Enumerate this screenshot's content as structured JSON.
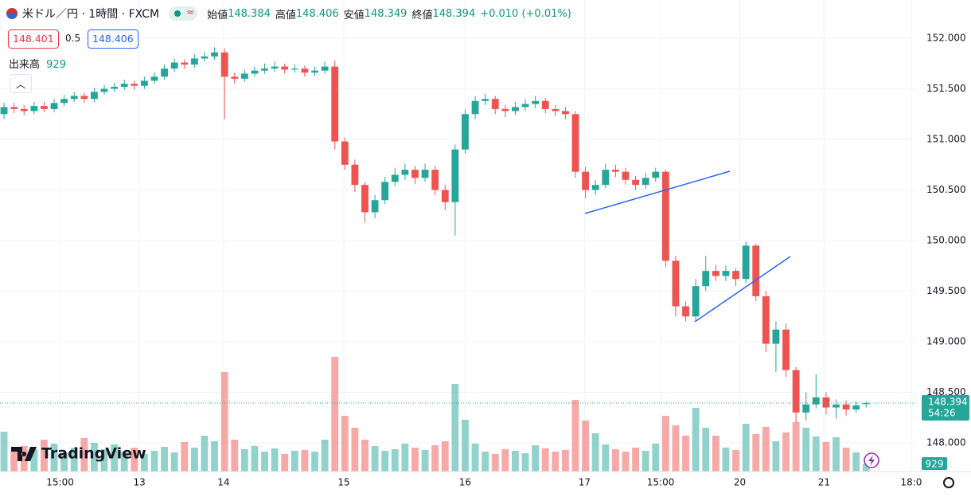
{
  "chart_data": {
    "type": "candlestick",
    "title": "米ドル／円 · 1時間 · FXCM",
    "info_labels": [
      "始値",
      "高値",
      "安値",
      "終値"
    ],
    "change": "+0.010 (+0.01%)",
    "bid": 148.401,
    "spread": 0.5,
    "ask": 148.406,
    "volume_label": "出来高",
    "countdown": "54:26",
    "brand": "TradingView",
    "up_color": "#26a69a",
    "down_color": "#ef5350",
    "open": [
      151.25,
      151.32,
      151.3,
      151.28,
      151.33,
      151.3,
      151.36,
      151.4,
      151.43,
      151.4,
      151.47,
      151.5,
      151.52,
      151.55,
      151.53,
      151.58,
      151.62,
      151.7,
      151.76,
      151.74,
      151.8,
      151.82,
      151.86,
      151.62,
      151.6,
      151.65,
      151.68,
      151.7,
      151.72,
      151.69,
      151.7,
      151.66,
      151.68,
      151.72,
      150.98,
      150.75,
      150.55,
      150.28,
      150.4,
      150.58,
      150.65,
      150.7,
      150.62,
      150.7,
      150.5,
      150.38,
      150.9,
      151.25,
      151.38,
      151.4,
      151.3,
      151.28,
      151.32,
      151.35,
      151.38,
      151.3,
      151.28,
      151.25,
      150.68,
      150.5,
      150.55,
      150.7,
      150.68,
      150.6,
      150.55,
      150.62,
      150.68,
      149.8,
      149.35,
      149.25,
      149.55,
      149.7,
      149.65,
      149.7,
      149.62,
      149.95,
      149.45,
      148.98,
      149.12,
      148.72,
      148.3,
      148.38,
      148.45,
      148.35,
      148.38,
      148.33,
      148.384
    ],
    "high": [
      151.36,
      151.36,
      151.34,
      151.37,
      151.37,
      151.4,
      151.44,
      151.47,
      151.46,
      151.51,
      151.54,
      151.56,
      151.59,
      151.58,
      151.62,
      151.66,
      151.74,
      151.8,
      151.79,
      151.84,
      151.87,
      151.91,
      151.9,
      151.66,
      151.69,
      151.72,
      151.75,
      151.77,
      151.75,
      151.74,
      151.73,
      151.72,
      151.77,
      151.78,
      151.02,
      150.8,
      150.58,
      150.45,
      150.63,
      150.72,
      150.76,
      150.74,
      150.76,
      150.74,
      150.55,
      150.95,
      151.3,
      151.43,
      151.45,
      151.43,
      151.34,
      151.37,
      151.4,
      151.43,
      151.41,
      151.34,
      151.32,
      151.28,
      150.73,
      150.6,
      150.76,
      150.75,
      150.72,
      150.64,
      150.67,
      150.72,
      150.7,
      149.85,
      149.4,
      149.62,
      149.85,
      149.76,
      149.75,
      149.73,
      149.99,
      149.97,
      149.5,
      149.2,
      149.18,
      148.75,
      148.5,
      148.68,
      148.5,
      148.43,
      148.42,
      148.41,
      148.406
    ],
    "low": [
      151.2,
      151.26,
      151.24,
      151.25,
      151.27,
      151.27,
      151.33,
      151.37,
      151.36,
      151.37,
      151.44,
      151.47,
      151.49,
      151.49,
      151.5,
      151.55,
      151.59,
      151.67,
      151.7,
      151.71,
      151.77,
      151.79,
      151.2,
      151.55,
      151.57,
      151.62,
      151.65,
      151.67,
      151.65,
      151.66,
      151.62,
      151.63,
      151.65,
      150.9,
      150.7,
      150.48,
      150.18,
      150.22,
      150.36,
      150.54,
      150.6,
      150.56,
      150.58,
      150.45,
      150.3,
      150.05,
      150.86,
      151.2,
      151.34,
      151.25,
      151.22,
      151.24,
      151.28,
      151.31,
      151.26,
      151.23,
      151.2,
      150.62,
      150.42,
      150.45,
      150.52,
      150.63,
      150.55,
      150.5,
      150.51,
      150.58,
      149.74,
      149.25,
      149.2,
      149.2,
      149.5,
      149.6,
      149.6,
      149.55,
      149.58,
      149.4,
      148.9,
      148.7,
      148.65,
      148.2,
      148.22,
      148.34,
      148.28,
      148.24,
      148.27,
      148.3,
      148.349
    ],
    "close": [
      151.32,
      151.3,
      151.28,
      151.33,
      151.3,
      151.36,
      151.4,
      151.43,
      151.4,
      151.47,
      151.5,
      151.52,
      151.55,
      151.53,
      151.58,
      151.62,
      151.7,
      151.76,
      151.74,
      151.8,
      151.82,
      151.86,
      151.62,
      151.6,
      151.65,
      151.68,
      151.7,
      151.72,
      151.69,
      151.7,
      151.66,
      151.68,
      151.72,
      150.98,
      150.75,
      150.55,
      150.28,
      150.4,
      150.58,
      150.65,
      150.7,
      150.62,
      150.7,
      150.5,
      150.38,
      150.9,
      151.25,
      151.38,
      151.4,
      151.3,
      151.28,
      151.32,
      151.35,
      151.38,
      151.3,
      151.28,
      151.25,
      150.68,
      150.5,
      150.55,
      150.7,
      150.68,
      150.6,
      150.55,
      150.62,
      150.68,
      149.8,
      149.35,
      149.25,
      149.55,
      149.7,
      149.65,
      149.7,
      149.62,
      149.95,
      149.45,
      148.98,
      149.12,
      148.72,
      148.3,
      148.38,
      148.45,
      148.35,
      148.38,
      148.33,
      148.37,
      148.394
    ],
    "volume": [
      5000,
      2600,
      3200,
      2800,
      4000,
      3500,
      2400,
      3000,
      4200,
      3600,
      2800,
      3400,
      2500,
      3000,
      2200,
      2600,
      3100,
      2400,
      3700,
      3000,
      4500,
      3800,
      12500,
      4000,
      2800,
      3200,
      2500,
      2900,
      2200,
      2600,
      2700,
      2500,
      4000,
      14400,
      7000,
      5500,
      4000,
      3200,
      2600,
      2800,
      3500,
      3000,
      2700,
      3300,
      3800,
      11000,
      6500,
      3500,
      2500,
      2200,
      2800,
      2600,
      2300,
      3300,
      2900,
      2500,
      2700,
      9000,
      6400,
      4800,
      3400,
      2800,
      2500,
      3000,
      2600,
      3500,
      7000,
      5800,
      4500,
      8000,
      5500,
      4500,
      3000,
      2700,
      6000,
      4700,
      5600,
      3800,
      4900,
      6200,
      5500,
      4400,
      3700,
      4300,
      3000,
      2400,
      929
    ],
    "ylim": [
      147.717,
      152.378
    ],
    "yticks": [
      {
        "value": 148,
        "label": "148.000"
      },
      {
        "value": 148.5,
        "label": "148.500"
      },
      {
        "value": 149,
        "label": "149.000"
      },
      {
        "value": 149.5,
        "label": "149.500"
      },
      {
        "value": 150,
        "label": "150.000"
      },
      {
        "value": 150.5,
        "label": "150.500"
      },
      {
        "value": 151,
        "label": "151.000"
      },
      {
        "value": 151.5,
        "label": "151.500"
      },
      {
        "value": 152,
        "label": "152.000"
      }
    ],
    "vlim": [
      0,
      20000
    ],
    "xlim": [
      -0.4,
      90.9
    ],
    "xticks": [
      {
        "value": 5.6,
        "label": "15:00"
      },
      {
        "value": 13.5,
        "label": "13"
      },
      {
        "value": 21.9,
        "label": "14"
      },
      {
        "value": 33.9,
        "label": "15"
      },
      {
        "value": 46,
        "label": "16"
      },
      {
        "value": 57.9,
        "label": "17"
      },
      {
        "value": 65.5,
        "label": "15:00"
      },
      {
        "value": 73.4,
        "label": "20"
      },
      {
        "value": 81.8,
        "label": "21"
      },
      {
        "value": 90.5,
        "label": "18:0"
      }
    ],
    "grid": true
  }
}
